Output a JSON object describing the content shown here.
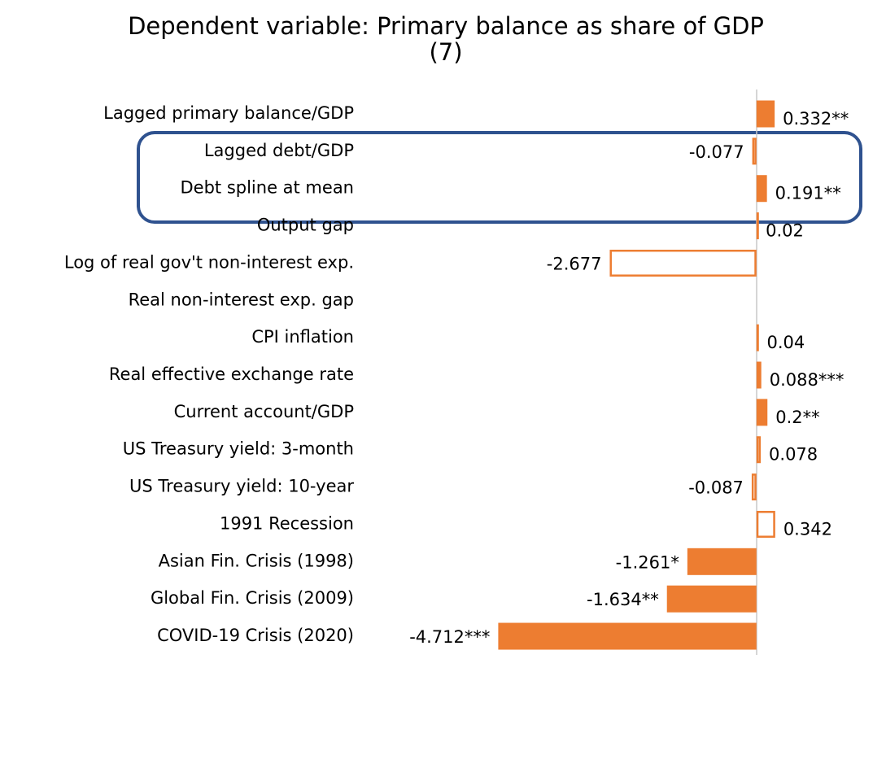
{
  "chart_data": {
    "type": "bar",
    "orientation": "horizontal",
    "title": "Dependent variable: Primary balance as share of GDP",
    "subtitle": "(7)",
    "categories": [
      "Lagged primary balance/GDP",
      "Lagged debt/GDP",
      "Debt spline at mean",
      "Output gap",
      "Log of real gov't non-interest exp.",
      "Real non-interest exp. gap",
      "CPI inflation",
      "Real effective exchange rate",
      "Current account/GDP",
      "US Treasury yield: 3-month",
      "US Treasury yield: 10-year",
      "1991 Recession",
      "Asian Fin. Crisis (1998)",
      "Global Fin. Crisis (2009)",
      "COVID-19 Crisis (2020)"
    ],
    "values": [
      0.332,
      -0.077,
      0.191,
      0.02,
      -2.677,
      null,
      0.04,
      0.088,
      0.2,
      0.078,
      -0.087,
      0.342,
      -1.261,
      -1.634,
      -4.712
    ],
    "value_labels": [
      "0.332**",
      "-0.077",
      "0.191**",
      "0.02",
      "-2.677",
      null,
      "0.04",
      "0.088***",
      "0.2**",
      "0.078",
      "-0.087",
      "0.342",
      "-1.261*",
      "-1.634**",
      "-4.712***"
    ],
    "color": "#ed7d31",
    "xlim": [
      -5,
      2
    ]
  }
}
